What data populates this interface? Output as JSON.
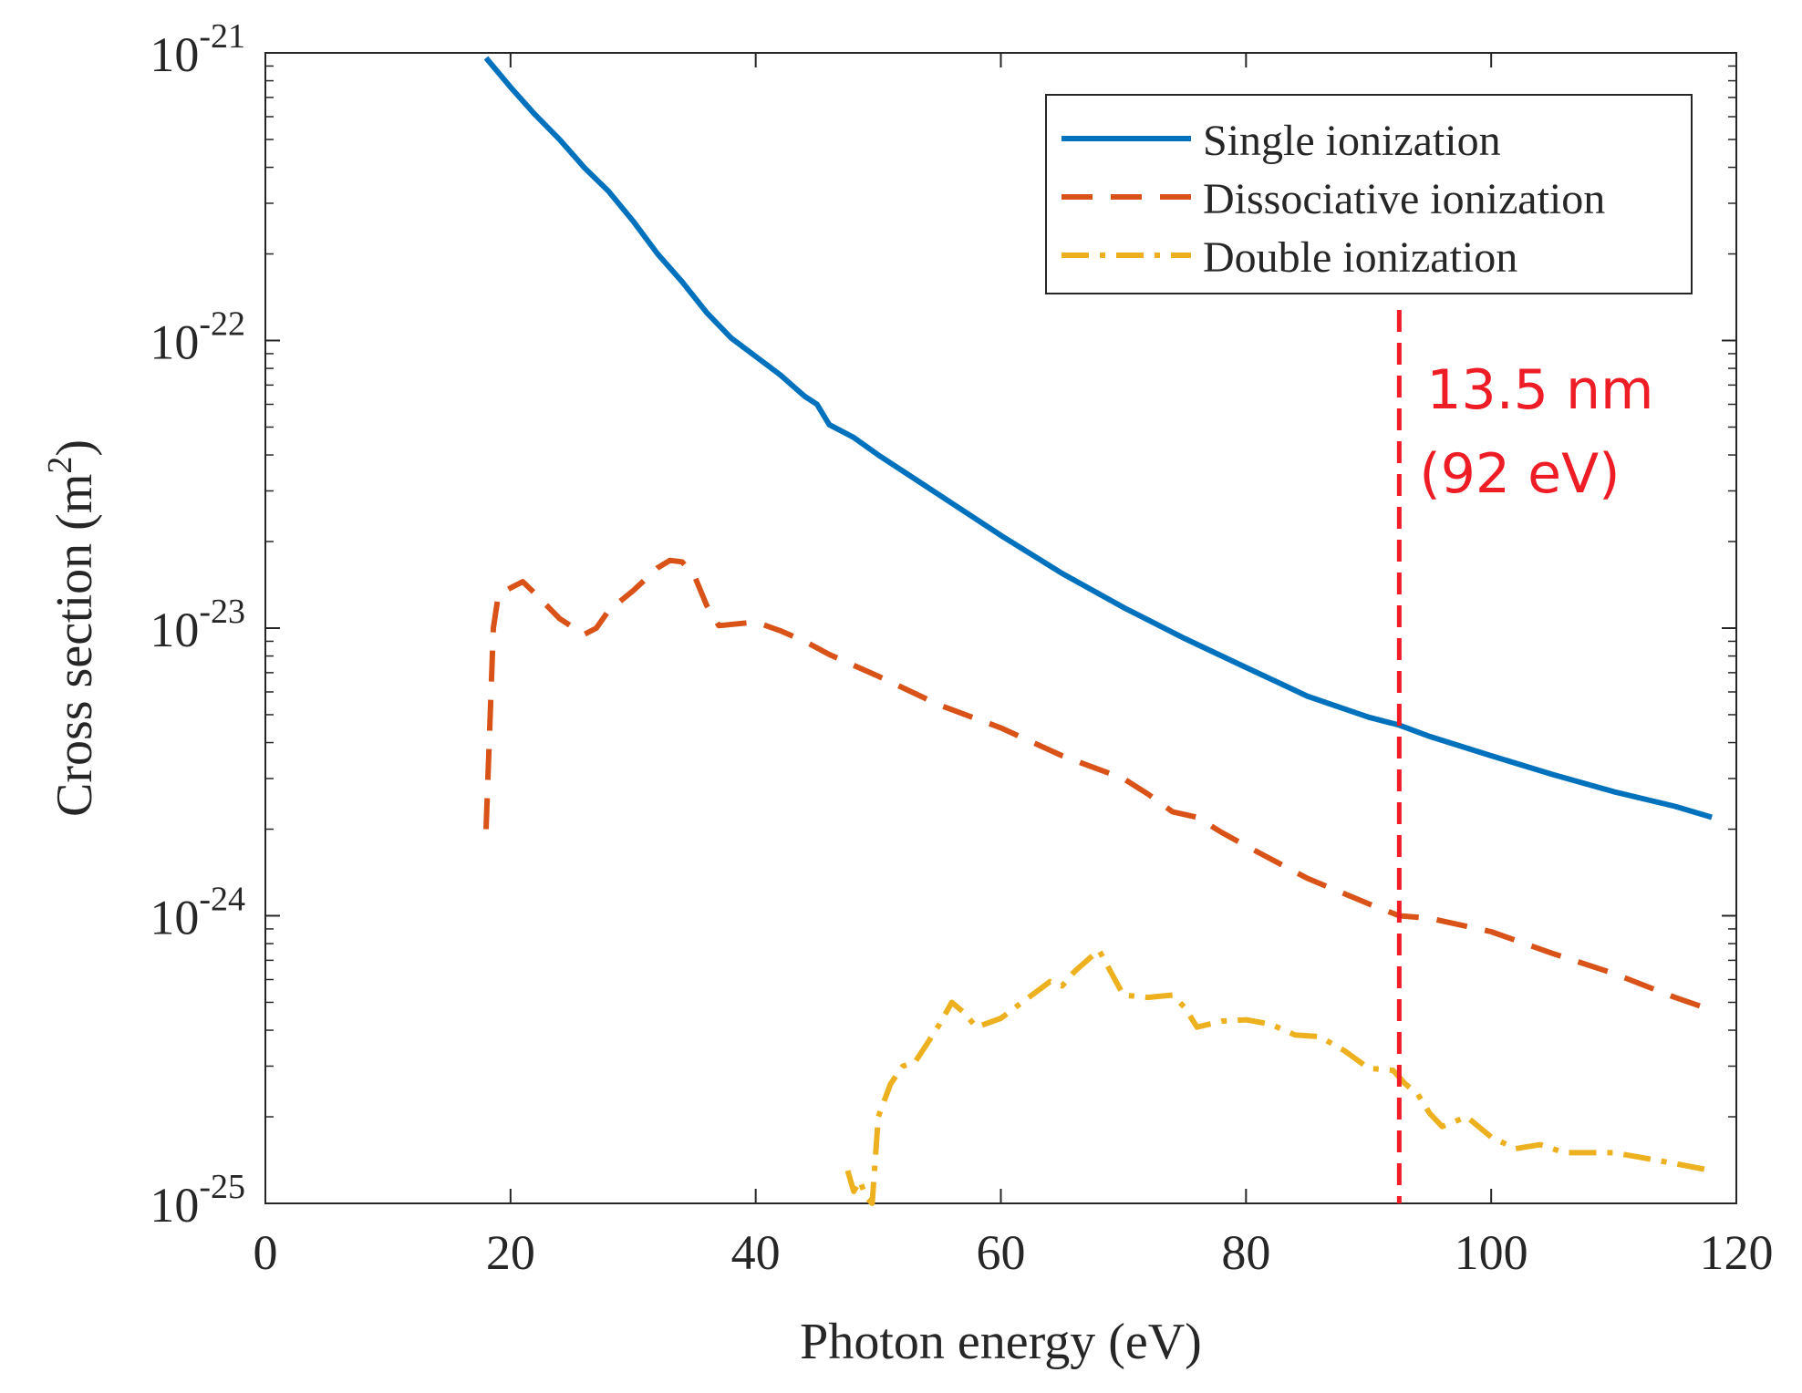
{
  "chart_data": {
    "type": "line",
    "title": "",
    "xlabel": "Photon energy (eV)",
    "ylabel_text": "Cross section (m",
    "ylabel_sup": "2",
    "ylabel_close": ")",
    "xlim": [
      0,
      120
    ],
    "ylim": [
      1e-25,
      1e-21
    ],
    "yscale": "log",
    "x_ticks": [
      {
        "value": 0,
        "label": "0"
      },
      {
        "value": 20,
        "label": "20"
      },
      {
        "value": 40,
        "label": "40"
      },
      {
        "value": 60,
        "label": "60"
      },
      {
        "value": 80,
        "label": "80"
      },
      {
        "value": 100,
        "label": "100"
      },
      {
        "value": 120,
        "label": "120"
      }
    ],
    "y_ticks": [
      {
        "value": 1e-21,
        "base": "10",
        "exp": "-21"
      },
      {
        "value": 1e-22,
        "base": "10",
        "exp": "-22"
      },
      {
        "value": 1e-23,
        "base": "10",
        "exp": "-23"
      },
      {
        "value": 1e-24,
        "base": "10",
        "exp": "-24"
      },
      {
        "value": 1e-25,
        "base": "10",
        "exp": "-25"
      }
    ],
    "legend_position": "top-right",
    "grid": false,
    "series": [
      {
        "name": "Single ionization",
        "color": "#0072BD",
        "style": "solid",
        "x": [
          18,
          20,
          22,
          24,
          26,
          28,
          30,
          32,
          34,
          36,
          38,
          40,
          42,
          44,
          45,
          46,
          48,
          50,
          55,
          60,
          65,
          70,
          75,
          80,
          85,
          90,
          92.5,
          95,
          100,
          105,
          110,
          115,
          118
        ],
        "y": [
          9.6e-22,
          7.6e-22,
          6.1e-22,
          5e-22,
          4e-22,
          3.3e-22,
          2.6e-22,
          2e-22,
          1.6e-22,
          1.25e-22,
          1.02e-22,
          8.8e-23,
          7.6e-23,
          6.4e-23,
          6e-23,
          5.1e-23,
          4.6e-23,
          4e-23,
          2.9e-23,
          2.1e-23,
          1.55e-23,
          1.18e-23,
          9.2e-24,
          7.3e-24,
          5.8e-24,
          4.9e-24,
          4.6e-24,
          4.2e-24,
          3.6e-24,
          3.1e-24,
          2.7e-24,
          2.4e-24,
          2.2e-24
        ]
      },
      {
        "name": "Dissociative ionization",
        "color": "#D95319",
        "style": "dashed",
        "x": [
          18,
          18.6,
          19,
          20,
          21,
          22,
          24,
          26,
          27,
          28,
          30,
          32,
          33,
          34,
          35,
          36,
          37,
          40,
          42,
          44,
          46,
          50,
          55,
          60,
          65,
          70,
          72,
          74,
          76,
          78,
          80,
          85,
          90,
          92.5,
          95,
          100,
          105,
          110,
          115,
          118
        ],
        "y": [
          2e-24,
          1e-23,
          1.3e-23,
          1.38e-23,
          1.45e-23,
          1.32e-23,
          1.08e-23,
          9.5e-24,
          1e-23,
          1.15e-23,
          1.35e-23,
          1.62e-23,
          1.72e-23,
          1.7e-23,
          1.52e-23,
          1.2e-23,
          1.02e-23,
          1.05e-23,
          9.8e-24,
          9e-24,
          8.1e-24,
          6.8e-24,
          5.4e-24,
          4.5e-24,
          3.6e-24,
          3e-24,
          2.65e-24,
          2.3e-24,
          2.2e-24,
          1.95e-24,
          1.75e-24,
          1.35e-24,
          1.1e-24,
          1e-24,
          9.8e-25,
          8.8e-25,
          7.4e-25,
          6.3e-25,
          5.2e-25,
          4.7e-25
        ]
      },
      {
        "name": "Double ionization",
        "color": "#EDB120",
        "style": "dashdot",
        "x": [
          47.5,
          48,
          48.5,
          49,
          49.5,
          50,
          51,
          52,
          53,
          54,
          55,
          56,
          57,
          58,
          60,
          62,
          64,
          65,
          66,
          68,
          70,
          72,
          74,
          75,
          76,
          78,
          80,
          82,
          84,
          86,
          88,
          90,
          92,
          93,
          94,
          95,
          96,
          98,
          100,
          102,
          104,
          106,
          108,
          110,
          112,
          114,
          116,
          118
        ],
        "y": [
          1.3e-25,
          1.1e-25,
          1.2e-25,
          1.05e-25,
          1e-25,
          2e-25,
          2.6e-25,
          3e-25,
          3.1e-25,
          3.6e-25,
          4.2e-25,
          5e-25,
          4.6e-25,
          4.1e-25,
          4.4e-25,
          5.1e-25,
          5.9e-25,
          5.7e-25,
          6.4e-25,
          7.6e-25,
          5.3e-25,
          5.2e-25,
          5.3e-25,
          4.8e-25,
          4.1e-25,
          4.3e-25,
          4.35e-25,
          4.2e-25,
          3.85e-25,
          3.8e-25,
          3.4e-25,
          2.95e-25,
          2.9e-25,
          2.6e-25,
          2.4e-25,
          2.05e-25,
          1.85e-25,
          2e-25,
          1.7e-25,
          1.55e-25,
          1.6e-25,
          1.5e-25,
          1.5e-25,
          1.5e-25,
          1.45e-25,
          1.4e-25,
          1.35e-25,
          1.3e-25
        ]
      }
    ],
    "annotations": [
      {
        "type": "vertical-line",
        "x": 92.5,
        "color": "#EE1C25",
        "style": "dashed",
        "label_line1": "13.5 nm",
        "label_line2": "(92 eV)"
      }
    ]
  }
}
